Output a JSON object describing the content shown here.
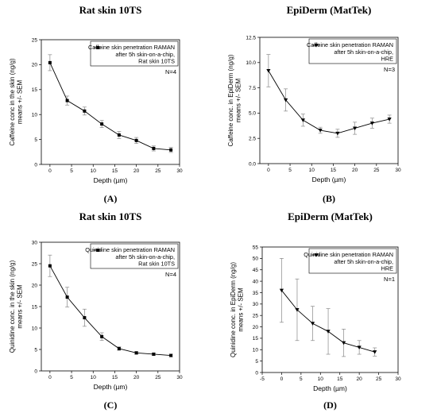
{
  "chart_data": [
    {
      "type": "line",
      "title": "Rat skin 10TS",
      "panel_label": "(A)",
      "xlabel": "Depth (µm)",
      "ylabel": "Caffeine conc in the skin (ng/g) means +/- SEM",
      "xlim": [
        -2,
        30
      ],
      "ylim": [
        0,
        25
      ],
      "xticks": [
        "0",
        "5",
        "10",
        "15",
        "20",
        "25",
        "30"
      ],
      "yticks": [
        "0",
        "5",
        "10",
        "15",
        "20",
        "25"
      ],
      "legend": [
        "Caffeine skin penetration RAMAN",
        "after 5h skin-on-a-chip,",
        "Rat skin 10TS"
      ],
      "legend_position": "top-right",
      "marker": "square",
      "note": "N=4",
      "series": [
        {
          "x": [
            0,
            4,
            8,
            12,
            16,
            20,
            24,
            28
          ],
          "y": [
            20.4,
            12.8,
            10.7,
            8.1,
            5.9,
            4.8,
            3.2,
            2.9
          ],
          "error": [
            1.6,
            0.9,
            0.8,
            0.7,
            0.7,
            0.6,
            0.5,
            0.5
          ]
        }
      ]
    },
    {
      "type": "line",
      "title": "EpiDerm (MatTek)",
      "panel_label": "(B)",
      "xlabel": "Depth (µm)",
      "ylabel": "Caffeine conc. in EpiDerm (ng/g) means +/- SEM",
      "xlim": [
        -2,
        30
      ],
      "ylim": [
        0,
        12.5
      ],
      "xticks": [
        "0",
        "5",
        "10",
        "15",
        "20",
        "25",
        "30"
      ],
      "yticks": [
        "0.0",
        "2.5",
        "5.0",
        "7.5",
        "10.0",
        "12.5"
      ],
      "legend": [
        "Caffeine skin penetration RAMAN",
        "after 5h skin-on-a-chip,",
        "HRE"
      ],
      "legend_position": "top-right",
      "marker": "triangle-down",
      "note": "N=3",
      "series": [
        {
          "x": [
            0,
            4,
            8,
            12,
            16,
            20,
            24,
            28
          ],
          "y": [
            9.2,
            6.3,
            4.3,
            3.3,
            3.0,
            3.5,
            4.0,
            4.4
          ],
          "error": [
            1.6,
            1.1,
            0.6,
            0.3,
            0.4,
            0.6,
            0.5,
            0.4
          ]
        }
      ]
    },
    {
      "type": "line",
      "title": "Rat skin 10TS",
      "panel_label": "(C)",
      "xlabel": "Depth (µm)",
      "ylabel": "Quinidine conc. in the skin (ng/g) means +/- SEM",
      "xlim": [
        -2,
        30
      ],
      "ylim": [
        0,
        30
      ],
      "xticks": [
        "0",
        "5",
        "10",
        "15",
        "20",
        "25",
        "30"
      ],
      "yticks": [
        "0",
        "5",
        "10",
        "15",
        "20",
        "25",
        "30"
      ],
      "legend": [
        "Quinidine skin penetration RAMAN",
        "after 5h skin-on-a-chip,",
        "Rat skin 10TS"
      ],
      "legend_position": "top-right",
      "marker": "square",
      "note": "N=4",
      "series": [
        {
          "x": [
            0,
            4,
            8,
            12,
            16,
            20,
            24,
            28
          ],
          "y": [
            24.5,
            17.2,
            12.4,
            8.0,
            5.2,
            4.2,
            3.9,
            3.6
          ],
          "error": [
            2.5,
            2.3,
            2.0,
            0.9,
            0.4,
            0.3,
            0.3,
            0.3
          ]
        }
      ]
    },
    {
      "type": "line",
      "title": "EpiDerm (MatTek)",
      "panel_label": "(D)",
      "xlabel": "Depth (µm)",
      "ylabel": "Quinidine conc. in EpiDerm (ng/g) means +/- SEM",
      "xlim": [
        -5,
        30
      ],
      "ylim": [
        0,
        55
      ],
      "xticks": [
        "-5",
        "0",
        "5",
        "10",
        "15",
        "20",
        "25",
        "30"
      ],
      "yticks": [
        "0",
        "5",
        "10",
        "15",
        "20",
        "25",
        "30",
        "35",
        "40",
        "45",
        "50",
        "55"
      ],
      "legend": [
        "Quinidine skin penetration RAMAN",
        "after 5h skin-on-a-chip,",
        "HRE"
      ],
      "legend_position": "top-right",
      "marker": "triangle-down",
      "note": "N=1",
      "series": [
        {
          "x": [
            0,
            4,
            8,
            12,
            16,
            20,
            24
          ],
          "y": [
            36,
            27.5,
            21.5,
            18,
            13,
            11,
            9
          ],
          "error": [
            14,
            13.5,
            7.5,
            10,
            6,
            3,
            1.8
          ]
        }
      ]
    }
  ]
}
